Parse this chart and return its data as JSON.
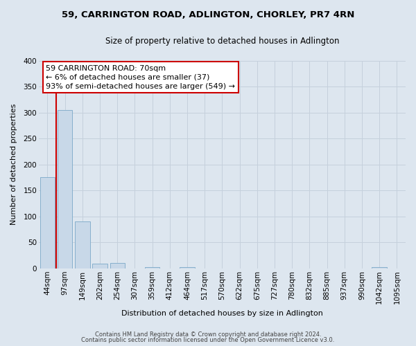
{
  "title": "59, CARRINGTON ROAD, ADLINGTON, CHORLEY, PR7 4RN",
  "subtitle": "Size of property relative to detached houses in Adlington",
  "xlabel": "Distribution of detached houses by size in Adlington",
  "ylabel": "Number of detached properties",
  "bar_labels": [
    "44sqm",
    "97sqm",
    "149sqm",
    "202sqm",
    "254sqm",
    "307sqm",
    "359sqm",
    "412sqm",
    "464sqm",
    "517sqm",
    "570sqm",
    "622sqm",
    "675sqm",
    "727sqm",
    "780sqm",
    "832sqm",
    "885sqm",
    "937sqm",
    "990sqm",
    "1042sqm",
    "1095sqm"
  ],
  "bar_values": [
    175,
    305,
    90,
    9,
    11,
    0,
    2,
    0,
    3,
    0,
    0,
    0,
    0,
    0,
    0,
    0,
    0,
    0,
    0,
    2,
    0
  ],
  "bar_color": "#c8d8e8",
  "bar_edge_color": "#7aa8c8",
  "ylim": [
    0,
    400
  ],
  "yticks": [
    0,
    50,
    100,
    150,
    200,
    250,
    300,
    350,
    400
  ],
  "annotation_text_line1": "59 CARRINGTON ROAD: 70sqm",
  "annotation_text_line2": "← 6% of detached houses are smaller (37)",
  "annotation_text_line3": "93% of semi-detached houses are larger (549) →",
  "annotation_box_color": "#ffffff",
  "annotation_box_edge_color": "#cc0000",
  "red_line_color": "#cc0000",
  "grid_color": "#c5d0dc",
  "background_color": "#dde6ef",
  "footer_line1": "Contains HM Land Registry data © Crown copyright and database right 2024.",
  "footer_line2": "Contains public sector information licensed under the Open Government Licence v3.0.",
  "title_fontsize": 9.5,
  "subtitle_fontsize": 8.5,
  "axis_label_fontsize": 8,
  "tick_fontsize": 7.5,
  "annotation_fontsize": 8,
  "footer_fontsize": 6
}
